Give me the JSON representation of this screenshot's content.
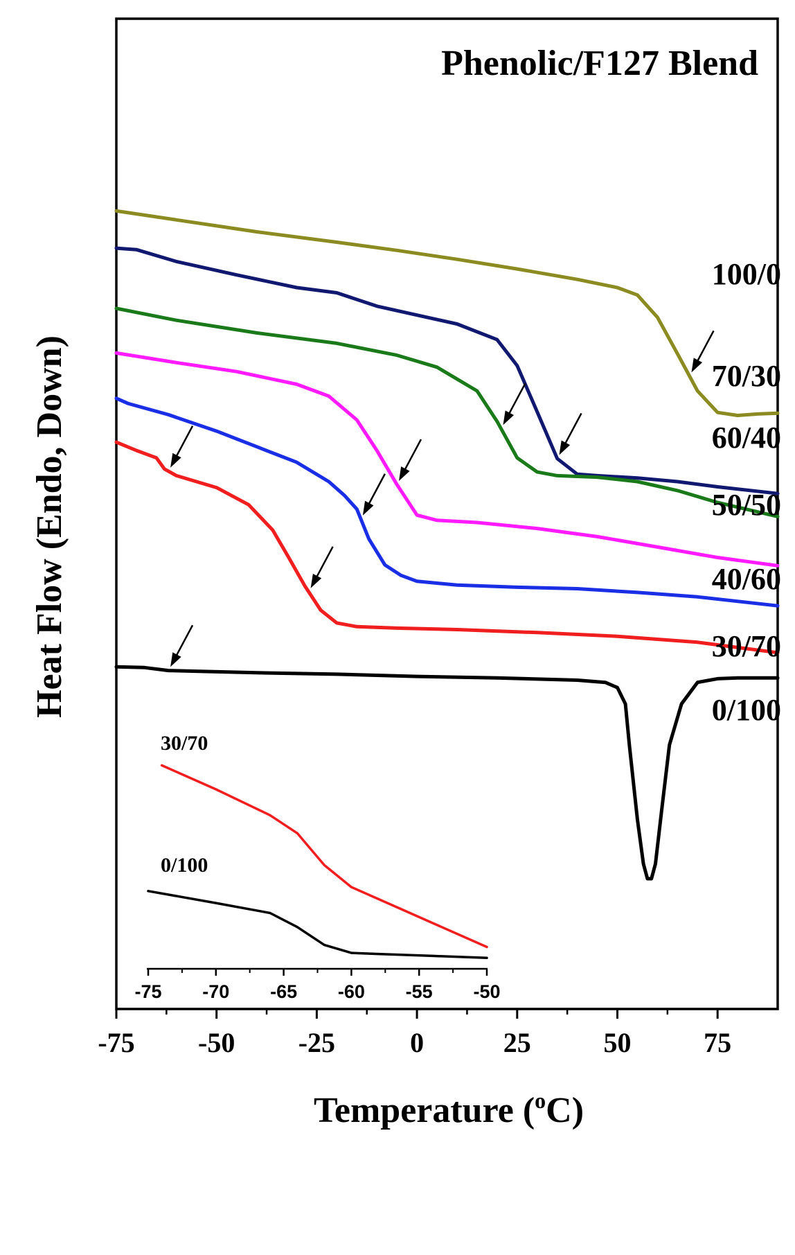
{
  "chart_data": {
    "type": "line",
    "title": "Phenolic/F127 Blend",
    "xlabel_main": "Temperature (",
    "xlabel_sup": "o",
    "xlabel_tail": "C)",
    "ylabel": "Heat Flow (Endo, Down)",
    "xlim": [
      -75,
      90
    ],
    "xticks": [
      -75,
      -50,
      -25,
      0,
      25,
      50,
      75
    ],
    "ylim": [
      0,
      100
    ],
    "series": [
      {
        "name": "100/0",
        "color": "#8b8b22",
        "x": [
          -75,
          -60,
          -40,
          -20,
          -5,
          10,
          25,
          40,
          50,
          55,
          60,
          65,
          70,
          75,
          80,
          85,
          90
        ],
        "y": [
          89.8,
          88.6,
          87.0,
          85.6,
          84.5,
          83.3,
          82.0,
          80.6,
          79.5,
          78.5,
          75.5,
          70.6,
          65.6,
          62.7,
          62.3,
          62.5,
          62.6
        ]
      },
      {
        "name": "70/30",
        "color": "#101870",
        "x": [
          -75,
          -70,
          -60,
          -45,
          -30,
          -20,
          -10,
          0,
          10,
          20,
          25,
          30,
          35,
          40,
          45,
          55,
          65,
          75,
          90
        ],
        "y": [
          84.8,
          84.6,
          83.0,
          81.2,
          79.5,
          78.8,
          77.0,
          75.8,
          74.6,
          72.5,
          69.0,
          62.8,
          56.5,
          54.4,
          54.2,
          53.9,
          53.4,
          52.7,
          51.8
        ]
      },
      {
        "name": "60/40",
        "color": "#1a7a1a",
        "x": [
          -75,
          -60,
          -40,
          -20,
          -5,
          5,
          15,
          20,
          25,
          30,
          35,
          45,
          55,
          65,
          75,
          90
        ],
        "y": [
          76.7,
          75.1,
          73.4,
          72.0,
          70.4,
          68.8,
          65.6,
          61.5,
          56.6,
          54.7,
          54.2,
          54.0,
          53.4,
          52.2,
          50.6,
          48.7
        ]
      },
      {
        "name": "50/50",
        "color": "#ff1aff",
        "x": [
          -75,
          -60,
          -45,
          -30,
          -22,
          -15,
          -10,
          -5,
          0,
          5,
          15,
          30,
          45,
          60,
          75,
          90
        ],
        "y": [
          70.7,
          69.4,
          68.2,
          66.5,
          64.9,
          61.7,
          57.6,
          53.0,
          48.9,
          48.2,
          47.9,
          47.1,
          46.0,
          44.6,
          43.2,
          42.1
        ]
      },
      {
        "name": "40/60",
        "color": "#1a2ee6",
        "x": [
          -75,
          -72,
          -62,
          -50,
          -40,
          -30,
          -22,
          -18,
          -15,
          -12,
          -8,
          -4,
          0,
          10,
          25,
          40,
          55,
          70,
          90
        ],
        "y": [
          64.6,
          63.9,
          62.4,
          60.2,
          58.1,
          56.0,
          53.4,
          51.5,
          49.7,
          45.7,
          42.2,
          40.8,
          40.0,
          39.5,
          39.2,
          39.0,
          38.5,
          37.9,
          36.7
        ]
      },
      {
        "name": "30/70",
        "color": "#f01e1e",
        "x": [
          -75,
          -70,
          -65,
          -63,
          -60,
          -50,
          -42,
          -36,
          -32,
          -28,
          -24,
          -20,
          -15,
          -5,
          10,
          30,
          50,
          70,
          90
        ],
        "y": [
          58.7,
          57.6,
          56.6,
          55.1,
          54.2,
          52.6,
          50.3,
          46.9,
          43.2,
          39.4,
          36.1,
          34.4,
          33.9,
          33.7,
          33.5,
          33.1,
          32.6,
          31.8,
          30.4
        ]
      },
      {
        "name": "0/100",
        "color": "#000000",
        "x": [
          -75,
          -68,
          -62,
          -55,
          -40,
          -20,
          0,
          20,
          40,
          47,
          50,
          52,
          53,
          55,
          56.5,
          57.5,
          58.5,
          59.5,
          61,
          63,
          66,
          70,
          75,
          80,
          90
        ],
        "y": [
          28.5,
          28.4,
          28.0,
          27.9,
          27.7,
          27.5,
          27.2,
          27.0,
          26.7,
          26.4,
          25.7,
          23.5,
          18.0,
          8.0,
          2.0,
          0.0,
          0.0,
          2.0,
          9.0,
          18.0,
          23.5,
          26.4,
          26.9,
          27.0,
          27.0
        ]
      }
    ],
    "series_labels": [
      "100/0",
      "70/30",
      "60/40",
      "50/50",
      "40/60",
      "30/70",
      "0/100"
    ],
    "arrows": [
      {
        "series": "100/0",
        "x": 68
      },
      {
        "series": "70/30",
        "x": 35
      },
      {
        "series": "60/40",
        "x": 21
      },
      {
        "series": "50/50",
        "x": -5
      },
      {
        "series": "40/60",
        "x": -14
      },
      {
        "series": "30/70",
        "x": -62
      },
      {
        "series": "30/70",
        "x": -27
      },
      {
        "series": "0/100",
        "x": -62
      }
    ],
    "inset": {
      "type": "line",
      "xlim": [
        -75,
        -50
      ],
      "xticks": [
        -75,
        -70,
        -65,
        -60,
        -55,
        -50
      ],
      "ylim": [
        0,
        100
      ],
      "series": [
        {
          "name": "30/70",
          "color": "#f01e1e",
          "x": [
            -74,
            -70,
            -66,
            -64,
            -62,
            -60,
            -58,
            -50
          ],
          "y": [
            95,
            83,
            70,
            61,
            45,
            34,
            28,
            4
          ]
        },
        {
          "name": "0/100",
          "color": "#000000",
          "x": [
            -75,
            -70,
            -66,
            -64,
            -62,
            -60,
            -58,
            -54,
            -50
          ],
          "y": [
            32,
            26,
            21,
            14,
            5,
            1,
            0.5,
            -0.5,
            -1.5
          ]
        }
      ]
    }
  }
}
